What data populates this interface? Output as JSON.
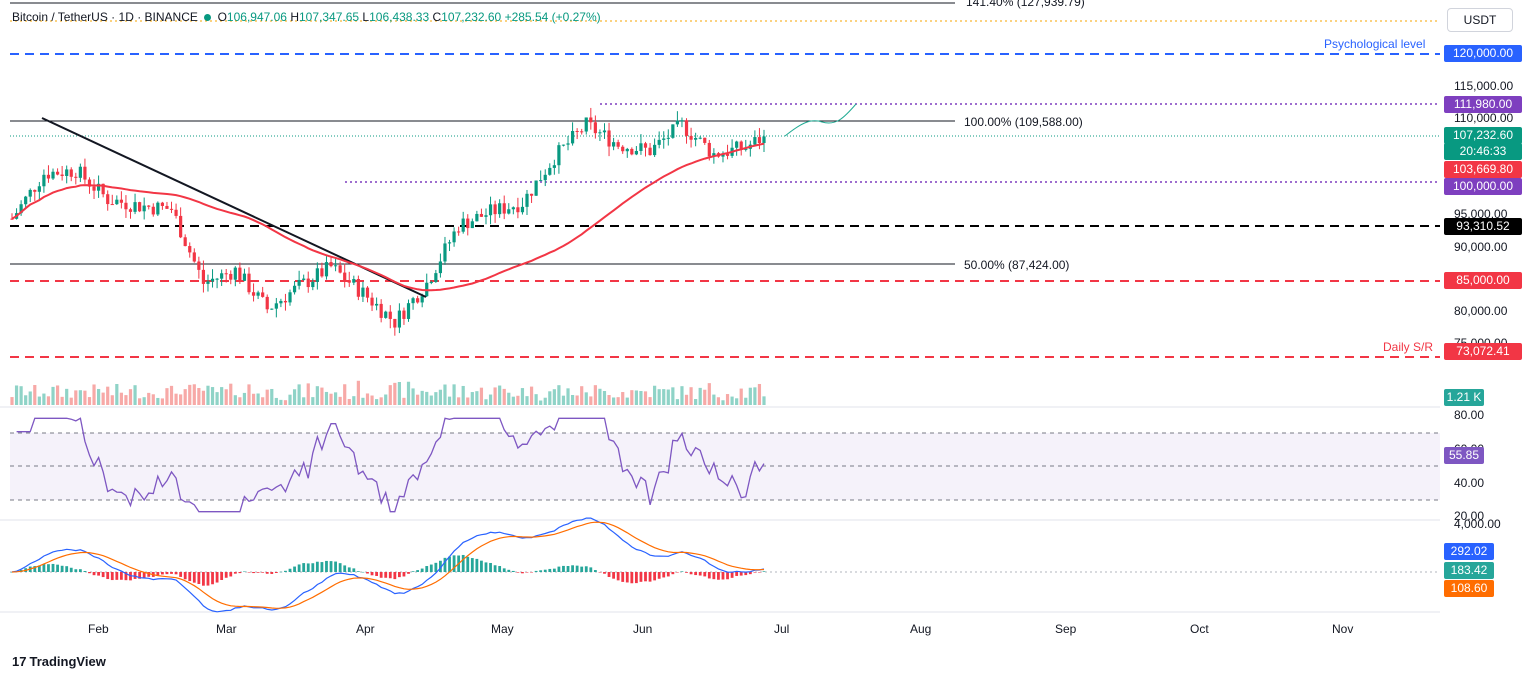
{
  "header": {
    "symbol": "Bitcoin / TetherUS",
    "interval": "1D",
    "exchange": "BINANCE",
    "open_label": "O",
    "open": "106,947.06",
    "high_label": "H",
    "high": "107,347.65",
    "low_label": "L",
    "low": "106,438.33",
    "close_label": "C",
    "close": "107,232.60",
    "change": "+285.54 (+0.27%)"
  },
  "currency": "USDT",
  "branding": "TradingView",
  "price_axis": {
    "ticks": [
      "115,000.00",
      "110,000.00",
      "95,000.00",
      "90,000.00",
      "80,000.00",
      "75,000.00"
    ],
    "tags": [
      {
        "text": "120,000.00",
        "color": "#2962ff"
      },
      {
        "text": "111,980.00",
        "color": "#7e3fbf"
      },
      {
        "text": "107,232.60",
        "color": "#089981"
      },
      {
        "text": "20:46:33",
        "color": "#089981"
      },
      {
        "text": "103,669.80",
        "color": "#f23645"
      },
      {
        "text": "100,000.00",
        "color": "#7e3fbf"
      },
      {
        "text": "93,310.52",
        "color": "#000000"
      },
      {
        "text": "85,000.00",
        "color": "#f23645"
      },
      {
        "text": "73,072.41",
        "color": "#f23645"
      }
    ],
    "volume_tag": "1.21 K",
    "rsi_ticks": [
      "80.00",
      "60.00",
      "40.00",
      "20.00"
    ],
    "rsi_tag": "55.85",
    "macd_ticks": [
      "4,000.00"
    ],
    "macd_tags": [
      {
        "text": "292.02",
        "color": "#2962ff"
      },
      {
        "text": "183.42",
        "color": "#26a69a"
      },
      {
        "text": "108.60",
        "color": "#ff6d00"
      }
    ]
  },
  "annotations": {
    "fib_141": "141.40% (127,939.79)",
    "fib_100": "100.00% (109,588.00)",
    "fib_50": "50.00% (87,424.00)",
    "psychological": "Psychological level",
    "daily_sr": "Daily S/R"
  },
  "time_axis": [
    "Feb",
    "Mar",
    "Apr",
    "May",
    "Jun",
    "Jul",
    "Aug",
    "Sep",
    "Oct",
    "Nov"
  ],
  "chart_data": {
    "type": "candlestick",
    "symbol": "Bitcoin / TetherUS",
    "interval": "1D",
    "x_range": [
      "2025-01-13",
      "2025-06-27"
    ],
    "y_range": [
      73000,
      121000
    ],
    "close_path_approx": [
      {
        "date": "2025-01-13",
        "close": 94500
      },
      {
        "date": "2025-01-20",
        "close": 101500
      },
      {
        "date": "2025-01-27",
        "close": 102000
      },
      {
        "date": "2025-02-03",
        "close": 97500
      },
      {
        "date": "2025-02-10",
        "close": 96500
      },
      {
        "date": "2025-02-17",
        "close": 96000
      },
      {
        "date": "2025-02-24",
        "close": 84500
      },
      {
        "date": "2025-03-03",
        "close": 86500
      },
      {
        "date": "2025-03-10",
        "close": 80500
      },
      {
        "date": "2025-03-17",
        "close": 84000
      },
      {
        "date": "2025-03-24",
        "close": 87000
      },
      {
        "date": "2025-03-31",
        "close": 83000
      },
      {
        "date": "2025-04-07",
        "close": 78500
      },
      {
        "date": "2025-04-14",
        "close": 84500
      },
      {
        "date": "2025-04-21",
        "close": 93500
      },
      {
        "date": "2025-04-28",
        "close": 95500
      },
      {
        "date": "2025-05-05",
        "close": 97000
      },
      {
        "date": "2025-05-12",
        "close": 104000
      },
      {
        "date": "2025-05-19",
        "close": 109000
      },
      {
        "date": "2025-05-26",
        "close": 106000
      },
      {
        "date": "2025-06-02",
        "close": 105000
      },
      {
        "date": "2025-06-09",
        "close": 109000
      },
      {
        "date": "2025-06-16",
        "close": 104500
      },
      {
        "date": "2025-06-23",
        "close": 105500
      },
      {
        "date": "2025-06-27",
        "close": 107232.6
      }
    ],
    "ohlc_last": {
      "open": 106947.06,
      "high": 107347.65,
      "low": 106438.33,
      "close": 107232.6,
      "change": 285.54,
      "change_pct": 0.27
    },
    "moving_average_last": 103669.8,
    "levels": {
      "fib_141": 127939.79,
      "psychological_level": 120000,
      "resistance": 111980,
      "fib_100": 109588,
      "support_100k": 100000,
      "support_93k": 93310.52,
      "fib_50": 87424,
      "support_85k": 85000,
      "daily_sr": 73072.41
    },
    "volume_last": "1.21 K",
    "rsi": {
      "value": 55.85,
      "upper": 70,
      "lower": 30,
      "range": [
        20,
        80
      ]
    },
    "macd": {
      "macd": 292.02,
      "signal": 108.6,
      "histogram": 183.42
    },
    "x_ticks": [
      "Feb",
      "Mar",
      "Apr",
      "May",
      "Jun",
      "Jul",
      "Aug",
      "Sep",
      "Oct",
      "Nov"
    ]
  }
}
